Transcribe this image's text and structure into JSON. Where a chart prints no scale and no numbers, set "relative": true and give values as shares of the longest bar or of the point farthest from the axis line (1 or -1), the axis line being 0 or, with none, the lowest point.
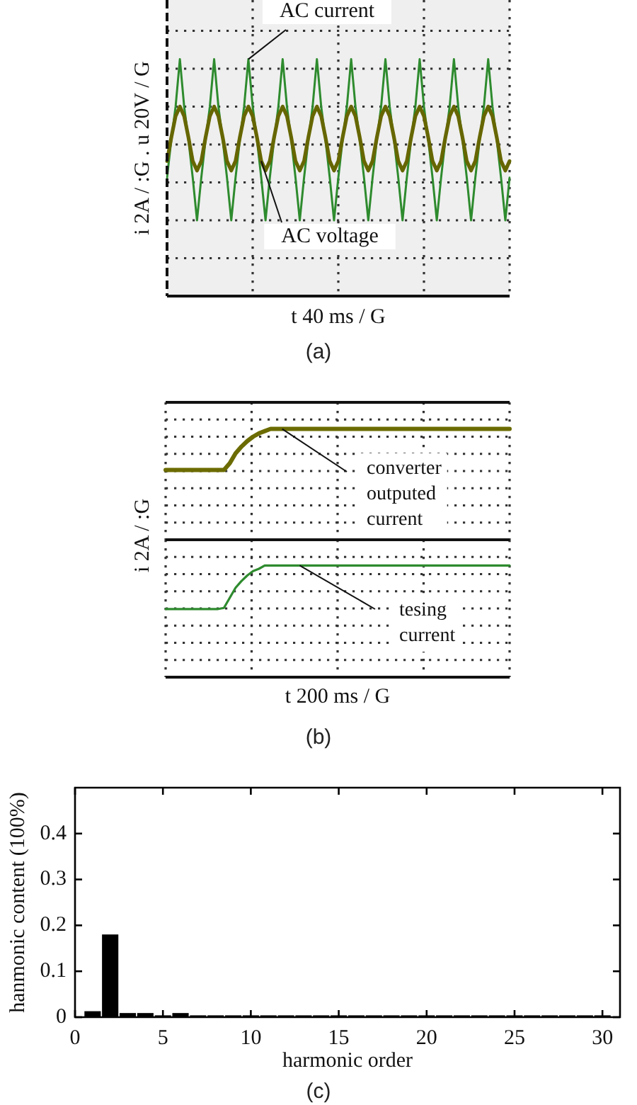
{
  "chart_data": [
    {
      "type": "line",
      "relative": true,
      "grid": true,
      "marker": "none",
      "line_style": "solid",
      "xlabel": "t 40 ms / G",
      "ylabel": "i 2A / :G . u 20V / G",
      "annotations": [
        "(a)"
      ],
      "categories": [
        null,
        null,
        null,
        null,
        null,
        null,
        null,
        null,
        null,
        null,
        null,
        null,
        null,
        null,
        null,
        null,
        null,
        null,
        null,
        null,
        null,
        null,
        null,
        null,
        null,
        null,
        null,
        null,
        null,
        null,
        null,
        null,
        null,
        null,
        null,
        null,
        null,
        null,
        null,
        null,
        null,
        null,
        null,
        null,
        null,
        null,
        null,
        null,
        null,
        null,
        null,
        null,
        null,
        null,
        null,
        null,
        null,
        null,
        null,
        null,
        null,
        null,
        null,
        null,
        null,
        null,
        null,
        null,
        null,
        null,
        null,
        null,
        null,
        null,
        null,
        null,
        null,
        null,
        null,
        null,
        null
      ],
      "series": [
        {
          "name": "AC current",
          "color": "#2e8b2e",
          "values": [
            0.5,
            0.66,
            0.8,
            1,
            0.8,
            0.66,
            0.5,
            0.32,
            0.5,
            0.66,
            0.8,
            1,
            0.8,
            0.66,
            0.5,
            0.32,
            0.5,
            0.66,
            0.8,
            1,
            0.8,
            0.66,
            0.5,
            0.32,
            0.5,
            0.66,
            0.8,
            1,
            0.8,
            0.66,
            0.5,
            0.32,
            0.5,
            0.66,
            0.8,
            1,
            0.8,
            0.66,
            0.5,
            0.32,
            0.5,
            0.66,
            0.8,
            1,
            0.8,
            0.66,
            0.5,
            0.32,
            0.5,
            0.66,
            0.8,
            1,
            0.8,
            0.66,
            0.5,
            0.32,
            0.5,
            0.66,
            0.8,
            1,
            0.8,
            0.66,
            0.5,
            0.32,
            0.5,
            0.66,
            0.8,
            1,
            0.8,
            0.66,
            0.5,
            0.32,
            0.5,
            0.66,
            0.8,
            1,
            0.8,
            0.66,
            0.5,
            0.32,
            0.5
          ]
        },
        {
          "name": "AC voltage",
          "color": "#666600",
          "values": [
            0.57,
            0.67,
            0.76,
            0.8,
            0.76,
            0.67,
            0.57,
            0.53,
            0.57,
            0.67,
            0.76,
            0.8,
            0.76,
            0.67,
            0.57,
            0.53,
            0.57,
            0.67,
            0.76,
            0.8,
            0.76,
            0.67,
            0.57,
            0.53,
            0.57,
            0.67,
            0.76,
            0.8,
            0.76,
            0.67,
            0.57,
            0.53,
            0.57,
            0.67,
            0.76,
            0.8,
            0.76,
            0.67,
            0.57,
            0.53,
            0.57,
            0.67,
            0.76,
            0.8,
            0.76,
            0.67,
            0.57,
            0.53,
            0.57,
            0.67,
            0.76,
            0.8,
            0.76,
            0.67,
            0.57,
            0.53,
            0.57,
            0.67,
            0.76,
            0.8,
            0.76,
            0.67,
            0.57,
            0.53,
            0.57,
            0.67,
            0.76,
            0.8,
            0.76,
            0.67,
            0.57,
            0.53,
            0.57,
            0.67,
            0.76,
            0.8,
            0.76,
            0.67,
            0.57,
            0.53,
            0.57
          ]
        }
      ]
    },
    {
      "type": "line",
      "relative": true,
      "grid": true,
      "marker": "none",
      "line_style": "solid",
      "categories": [
        null,
        null,
        null,
        null,
        null,
        null,
        null,
        null,
        null,
        null,
        null,
        null,
        null,
        null,
        null,
        null,
        null,
        null,
        null,
        null,
        null,
        null,
        null,
        null,
        null,
        null,
        null,
        null,
        null,
        null,
        null,
        null,
        null,
        null,
        null,
        null,
        null,
        null,
        null,
        null,
        null,
        null,
        null,
        null,
        null,
        null,
        null,
        null,
        null,
        null,
        null,
        null,
        null,
        null,
        null,
        null,
        null,
        null,
        null,
        null
      ],
      "series": [
        {
          "name": "converter outputed current",
          "color": "#6b6b00",
          "values": [
            0.63,
            0.63,
            0.63,
            0.63,
            0.63,
            0.63,
            0.63,
            0.63,
            0.63,
            0.63,
            0.63,
            0.69,
            0.78,
            0.84,
            0.89,
            0.93,
            0.96,
            0.98,
            1,
            1,
            1,
            1,
            1,
            1,
            1,
            1,
            1,
            1,
            1,
            1,
            1,
            1,
            1,
            1,
            1,
            1,
            1,
            1,
            1,
            1,
            1,
            1,
            1,
            1,
            1,
            1,
            1,
            1,
            1,
            1,
            1,
            1,
            1,
            1,
            1,
            1,
            1,
            1,
            1,
            1
          ]
        }
      ]
    },
    {
      "type": "line",
      "relative": true,
      "grid": true,
      "marker": "none",
      "line_style": "solid",
      "xlabel": "t 200 ms / G",
      "ylabel": "i 2A / :G",
      "annotations": [
        "(b)"
      ],
      "categories": [
        null,
        null,
        null,
        null,
        null,
        null,
        null,
        null,
        null,
        null,
        null,
        null,
        null,
        null,
        null,
        null,
        null,
        null,
        null,
        null,
        null,
        null,
        null,
        null,
        null,
        null,
        null,
        null,
        null,
        null,
        null,
        null,
        null,
        null,
        null,
        null,
        null,
        null,
        null,
        null,
        null,
        null,
        null,
        null,
        null,
        null,
        null,
        null,
        null,
        null,
        null,
        null,
        null,
        null,
        null,
        null,
        null,
        null,
        null,
        null
      ],
      "series": [
        {
          "name": "tesing current",
          "color": "#2e8b2e",
          "values": [
            0.61,
            0.61,
            0.61,
            0.61,
            0.61,
            0.61,
            0.61,
            0.61,
            0.61,
            0.61,
            0.62,
            0.71,
            0.8,
            0.86,
            0.91,
            0.95,
            0.97,
            1,
            1,
            1,
            1,
            1,
            1,
            1,
            1,
            1,
            1,
            1,
            1,
            1,
            1,
            1,
            1,
            1,
            1,
            1,
            1,
            1,
            1,
            1,
            1,
            1,
            1,
            1,
            1,
            1,
            1,
            1,
            1,
            1,
            1,
            1,
            1,
            1,
            1,
            1,
            1,
            1,
            1,
            1
          ]
        }
      ]
    },
    {
      "type": "bar",
      "x": [
        1,
        2,
        3,
        4,
        5,
        6,
        7,
        8,
        9,
        10,
        11,
        12,
        13,
        14,
        15,
        16,
        17,
        18,
        19,
        20,
        21,
        22,
        23,
        24,
        25,
        26,
        27,
        28,
        29,
        30
      ],
      "values": [
        0.013,
        0.18,
        0.009,
        0.009,
        0.004,
        0.009,
        0.004,
        0.004,
        0.004,
        0.004,
        0.004,
        0.004,
        0.004,
        0.004,
        0.004,
        0.004,
        0.004,
        0.004,
        0.004,
        0.004,
        0.004,
        0.004,
        0.004,
        0.004,
        0.004,
        0.004,
        0.004,
        0.004,
        0.004,
        0.004
      ],
      "color": "#000000",
      "xlim": [
        0,
        31
      ],
      "xticks": [
        0,
        5,
        10,
        15,
        20,
        25,
        30
      ],
      "ylim": [
        0,
        0.5
      ],
      "yticks": [
        0,
        0.1,
        0.2,
        0.3,
        0.4
      ],
      "xlabel": "harmonic order",
      "ylabel": "hanmonic content (100%)",
      "annotations": [
        "(c)"
      ]
    }
  ]
}
